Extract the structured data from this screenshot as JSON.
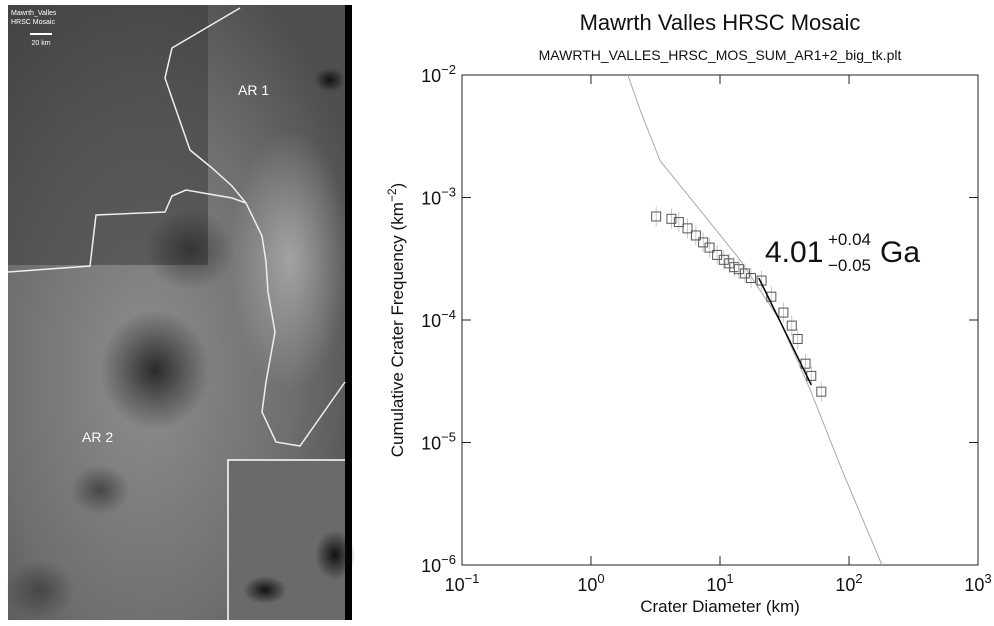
{
  "image": {
    "caption_line1": "Mawrth_Valles",
    "caption_line2": "HRSC Mosaic",
    "scale_label": "20 km",
    "region_1": "AR 1",
    "region_2": "AR 2"
  },
  "chart_data": {
    "type": "scatter",
    "title": "Mawrth Valles HRSC Mosaic",
    "subtitle": "MAWRTH_VALLES_HRSC_MOS_SUM_AR1+2_big_tk.plt",
    "x_label": "Crater Diameter (km)",
    "y_label": {
      "before": "Cumulative Crater Frequency (km",
      "sup": "−2",
      "after": ")"
    },
    "log_x": true,
    "log_y": true,
    "xlim": [
      0.1,
      1000
    ],
    "ylim": [
      1e-06,
      0.01
    ],
    "xticks": [
      {
        "value": 0.1,
        "label": "10",
        "exponent": "−1"
      },
      {
        "value": 1,
        "label": "10",
        "exponent": "0"
      },
      {
        "value": 10,
        "label": "10",
        "exponent": "1"
      },
      {
        "value": 100,
        "label": "10",
        "exponent": "2"
      },
      {
        "value": 1000,
        "label": "10",
        "exponent": "3"
      }
    ],
    "yticks": [
      {
        "value": 1e-06,
        "label": "10",
        "exponent": "−6"
      },
      {
        "value": 1e-05,
        "label": "10",
        "exponent": "−5"
      },
      {
        "value": 0.0001,
        "label": "10",
        "exponent": "−4"
      },
      {
        "value": 0.001,
        "label": "10",
        "exponent": "−3"
      },
      {
        "value": 0.01,
        "label": "10",
        "exponent": "−2"
      }
    ],
    "points": {
      "color": "#555555",
      "x": [
        3.2,
        4.2,
        4.8,
        5.6,
        6.5,
        7.4,
        8.3,
        9.5,
        10.7,
        11.8,
        12.9,
        14,
        15.6,
        17.4,
        21,
        25,
        31,
        36,
        40,
        46,
        51,
        61
      ],
      "y": [
        0.0007,
        0.00067,
        0.00063,
        0.00056,
        0.00049,
        0.00043,
        0.00039,
        0.00034,
        0.00031,
        0.00029,
        0.00027,
        0.00026,
        0.00024,
        0.00022,
        0.00021,
        0.000155,
        0.000115,
        9e-05,
        7e-05,
        4.4e-05,
        3.5e-05,
        2.6e-05
      ]
    },
    "isochron": {
      "color": "#aaaaaa",
      "x": [
        1.93,
        2.4,
        3.43,
        7,
        14.3,
        29,
        50,
        88,
        180
      ],
      "y": [
        0.01,
        0.0052,
        0.002,
        0.00079,
        0.00031,
        0.0001,
        2.7e-05,
        6e-06,
        1e-06
      ]
    },
    "fit": {
      "color": "#000000",
      "x": [
        20,
        51
      ],
      "y": [
        0.00022,
        2.95e-05
      ]
    },
    "annotation": {
      "value": "4.01",
      "plus": "+0.04",
      "minus": "−0.05",
      "unit": "Ga"
    }
  }
}
